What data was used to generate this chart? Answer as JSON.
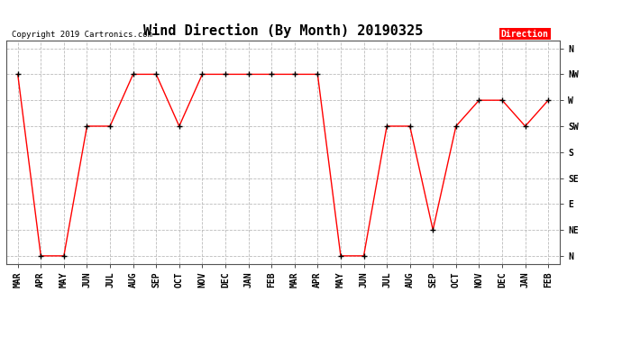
{
  "title": "Wind Direction (By Month) 20190325",
  "copyright_text": "Copyright 2019 Cartronics.com",
  "legend_label": "Direction",
  "legend_bg": "#ff0000",
  "legend_text_color": "#ffffff",
  "background_color": "#ffffff",
  "plot_bg": "#ffffff",
  "line_color": "#ff0000",
  "marker_color": "#000000",
  "x_labels": [
    "MAR",
    "APR",
    "MAY",
    "JUN",
    "JUL",
    "AUG",
    "SEP",
    "OCT",
    "NOV",
    "DEC",
    "JAN",
    "FEB",
    "MAR",
    "APR",
    "MAY",
    "JUN",
    "JUL",
    "AUG",
    "SEP",
    "OCT",
    "NOV",
    "DEC",
    "JAN",
    "FEB"
  ],
  "y_labels": [
    "N",
    "NE",
    "E",
    "SE",
    "S",
    "SW",
    "W",
    "NW",
    "N"
  ],
  "y_values": [
    0,
    1,
    2,
    3,
    4,
    5,
    6,
    7,
    8
  ],
  "data_directions": [
    7,
    0,
    0,
    5,
    5,
    7,
    7,
    5,
    7,
    7,
    7,
    7,
    7,
    7,
    0,
    0,
    5,
    5,
    1,
    5,
    6,
    6,
    5,
    6
  ],
  "ylim": [
    -0.3,
    8.3
  ],
  "title_fontsize": 11,
  "tick_fontsize": 7,
  "grid_color": "#bbbbbb",
  "grid_style": "--",
  "fig_width": 6.9,
  "fig_height": 3.75,
  "dpi": 100
}
